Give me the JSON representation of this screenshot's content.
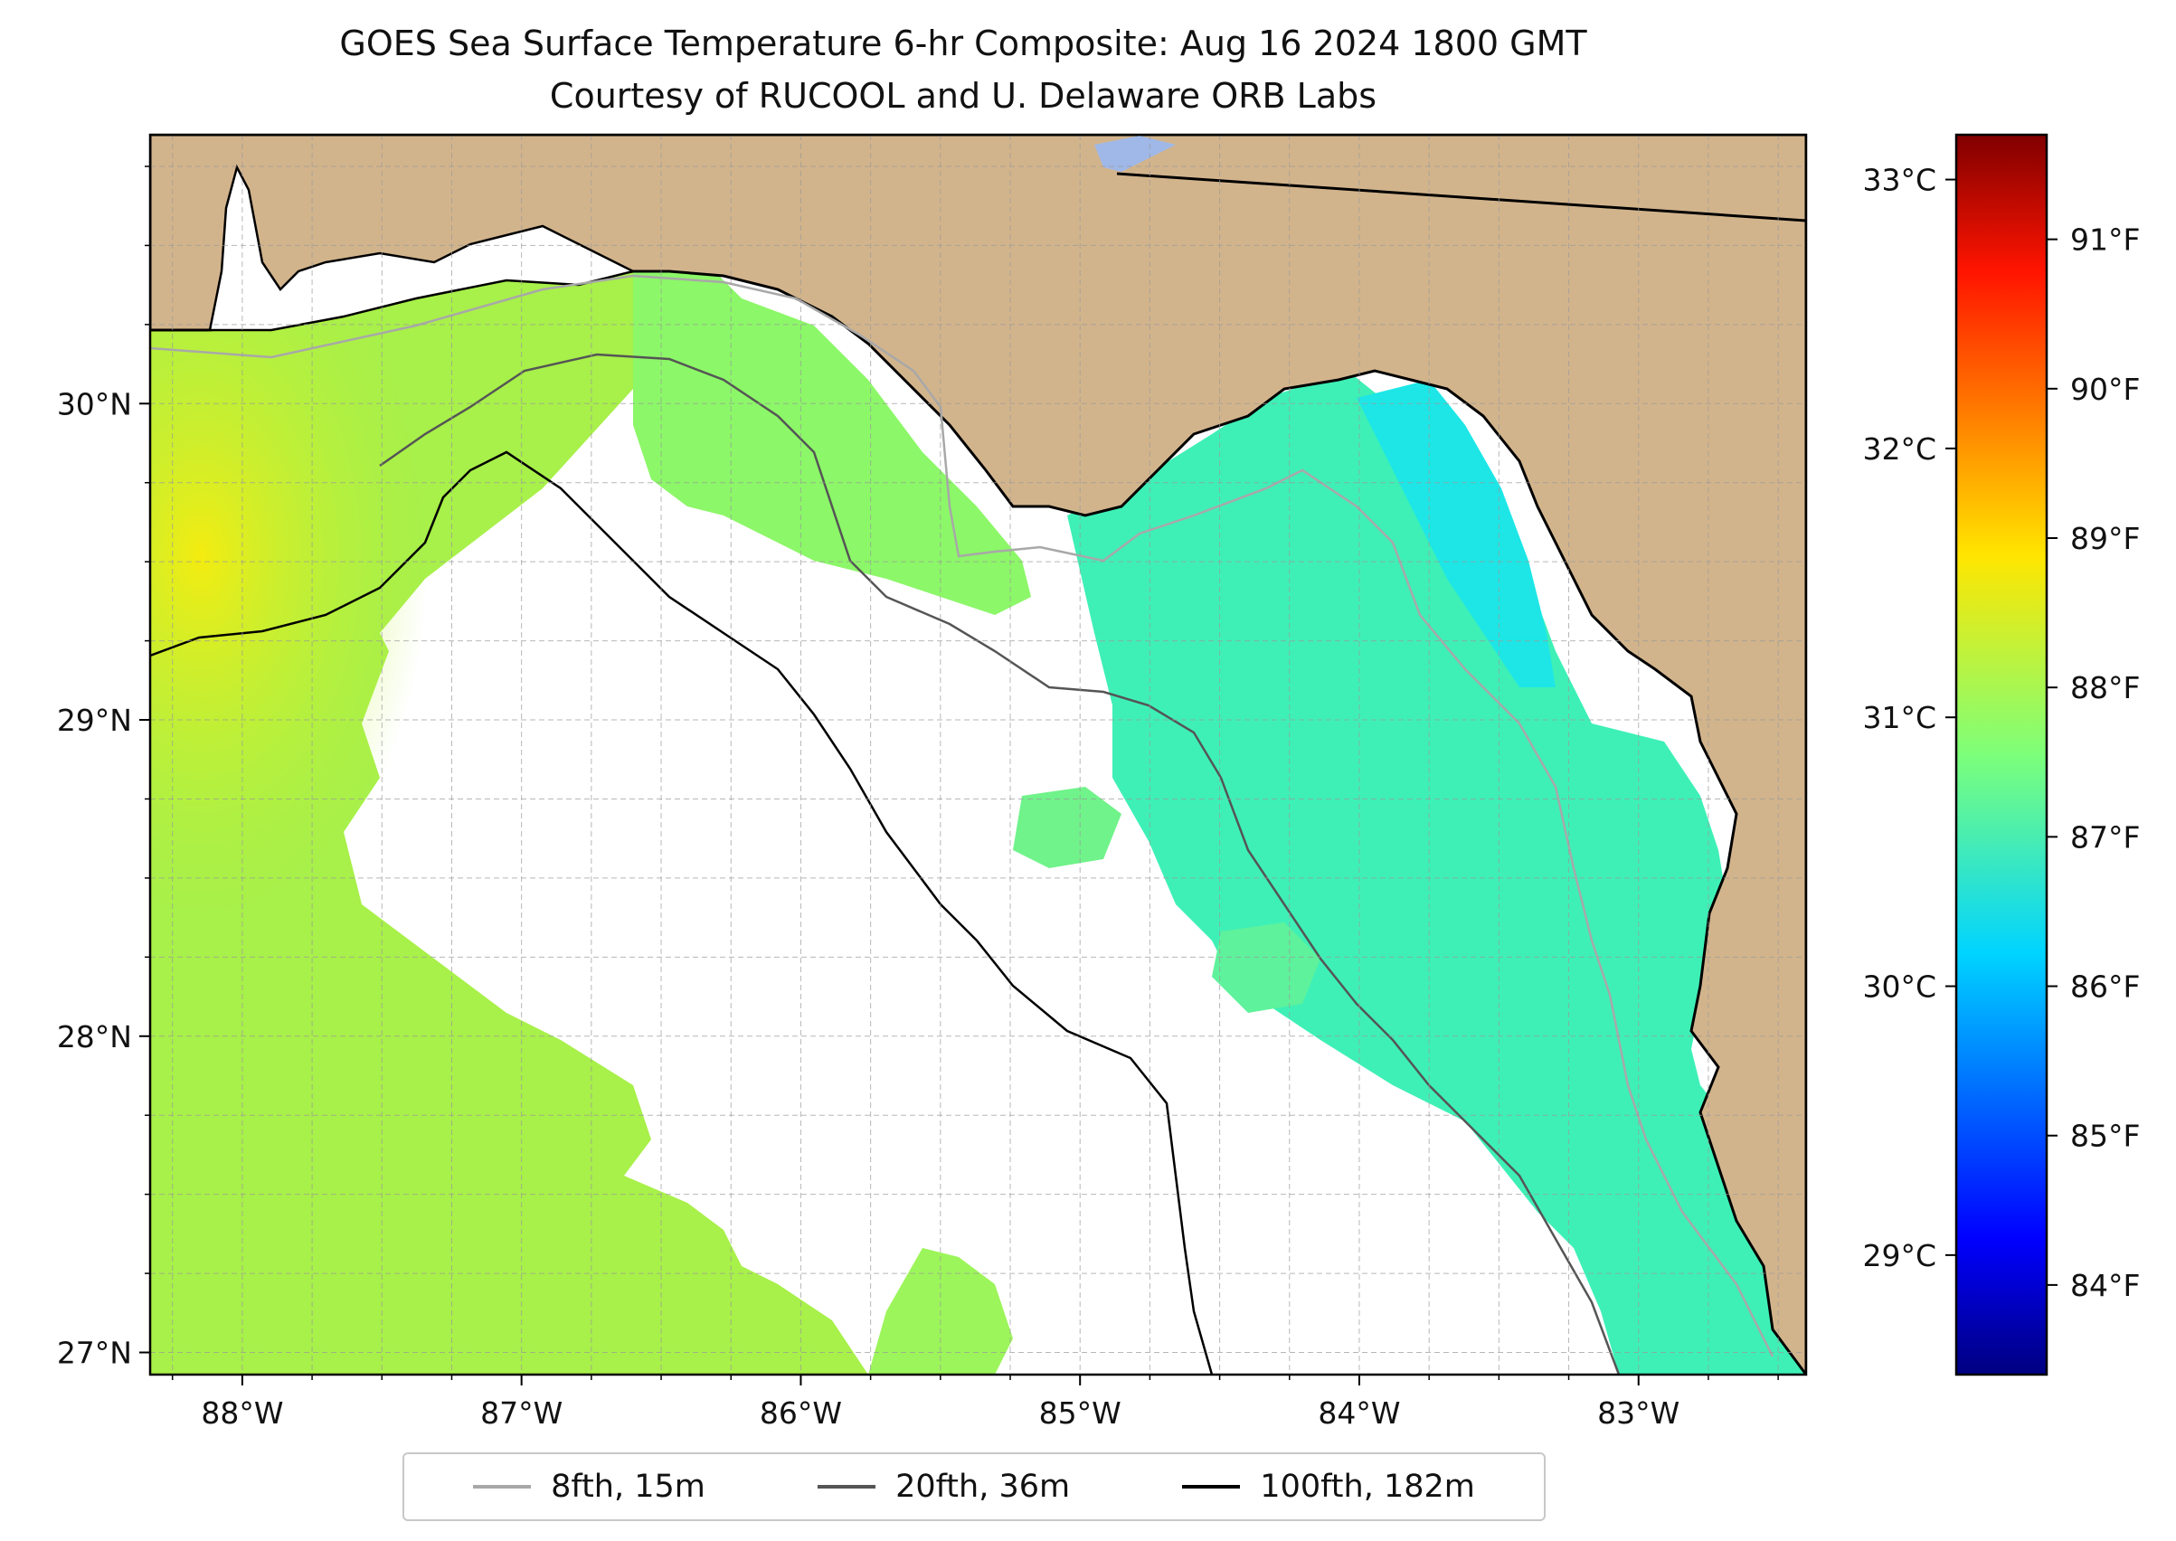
{
  "title": {
    "line1": "GOES Sea Surface Temperature 6-hr Composite: Aug 16 2024 1800 GMT",
    "line2": "Courtesy of RUCOOL and U. Delaware ORB Labs"
  },
  "map": {
    "lon_range": [
      -88.33,
      -82.4
    ],
    "lat_range": [
      26.93,
      30.85
    ],
    "lon_ticks": [
      {
        "value": -88,
        "label": "88°W"
      },
      {
        "value": -87,
        "label": "87°W"
      },
      {
        "value": -86,
        "label": "86°W"
      },
      {
        "value": -85,
        "label": "85°W"
      },
      {
        "value": -84,
        "label": "84°W"
      },
      {
        "value": -83,
        "label": "83°W"
      }
    ],
    "lat_ticks": [
      {
        "value": 27,
        "label": "27°N"
      },
      {
        "value": 28,
        "label": "28°N"
      },
      {
        "value": 29,
        "label": "29°N"
      },
      {
        "value": 30,
        "label": "30°N"
      }
    ],
    "gridlines": true,
    "colors": {
      "land": "#d2b48c",
      "no_data": "#ffffff",
      "lake": "#9fb8e8",
      "coast": "#000000"
    }
  },
  "colorbar": {
    "celsius_ticks": [
      "33°C",
      "32°C",
      "31°C",
      "30°C",
      "29°C"
    ],
    "fahrenheit_ticks": [
      "91°F",
      "90°F",
      "89°F",
      "88°F",
      "87°F",
      "86°F",
      "85°F",
      "84°F"
    ],
    "colormap": "jet",
    "range_f": [
      83.4,
      91.7
    ]
  },
  "legend": {
    "items": [
      {
        "label": "8fth, 15m",
        "color": "#a8a8a8"
      },
      {
        "label": "20fth, 36m",
        "color": "#555555"
      },
      {
        "label": "100fth, 182m",
        "color": "#000000"
      }
    ]
  }
}
